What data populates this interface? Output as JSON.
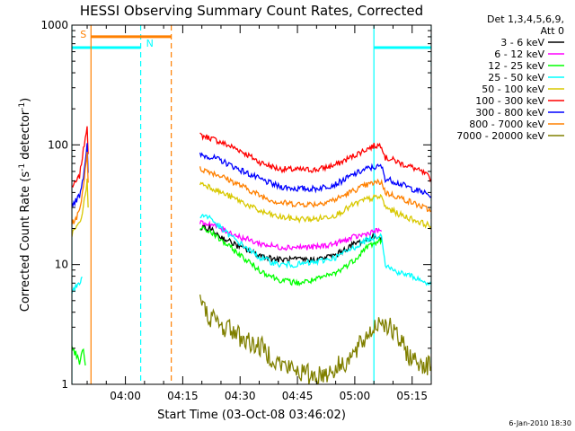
{
  "chart_data": {
    "type": "line",
    "title": "HESSI Observing Summary Count Rates, Corrected",
    "xlabel": "Start Time (03-Oct-08 03:46:02)",
    "ylabel_main": "Corrected Count Rate (s",
    "ylabel_sup1": "-1",
    "ylabel_mid": " detector",
    "ylabel_sup2": "-1",
    "ylabel_end": ")",
    "yscale": "log",
    "ylim": [
      1,
      1000
    ],
    "xlim_min": [
      226,
      320
    ],
    "xticks_min": [
      240,
      255,
      270,
      285,
      300,
      315
    ],
    "xtick_labels": [
      "04:00",
      "04:15",
      "04:30",
      "04:45",
      "05:00",
      "05:15"
    ],
    "yticks": [
      1,
      10,
      100,
      1000
    ],
    "ytick_labels": [
      "1",
      "10",
      "100",
      "1000"
    ],
    "legend_header": [
      "Det 1,3,4,5,6,9,",
      "Att 0"
    ],
    "legend": [
      {
        "label": "3 - 6 keV",
        "color": "#000000"
      },
      {
        "label": "6 - 12 keV",
        "color": "#ff00ff"
      },
      {
        "label": "12 - 25 keV",
        "color": "#00ff00"
      },
      {
        "label": "25 - 50 keV",
        "color": "#00ffff"
      },
      {
        "label": "50 - 100 keV",
        "color": "#d8c800"
      },
      {
        "label": "100 - 300 keV",
        "color": "#ff0000"
      },
      {
        "label": "300 - 800 keV",
        "color": "#0000ff"
      },
      {
        "label": "800 - 7000 keV",
        "color": "#ff8000"
      },
      {
        "label": "7000 - 20000 keV",
        "color": "#808000"
      }
    ],
    "markers": [
      {
        "label": "S",
        "color": "#ff8000"
      },
      {
        "label": "N",
        "color": "#00ffff"
      }
    ],
    "night_intervals_min": [
      [
        226,
        244
      ],
      [
        305,
        320
      ]
    ],
    "saa_interval_min": [
      231,
      252
    ],
    "gap_min": [
      244,
      259
    ],
    "series": [
      {
        "color": "#ff0000",
        "x": [
          226,
          227,
          228,
          229,
          230,
          230.5,
          259.5,
          262,
          265,
          270,
          275,
          280,
          285,
          290,
          295,
          300,
          303,
          305,
          307,
          308,
          310,
          312,
          315,
          318,
          320
        ],
        "y": [
          45,
          48,
          55,
          90,
          150,
          45,
          120,
          115,
          105,
          90,
          72,
          63,
          62,
          62,
          68,
          82,
          92,
          98,
          100,
          78,
          75,
          70,
          65,
          58,
          52
        ]
      },
      {
        "color": "#0000ff",
        "x": [
          226,
          227,
          228,
          229,
          230,
          230.5,
          259.5,
          262,
          265,
          270,
          275,
          280,
          285,
          290,
          295,
          300,
          303,
          305,
          307,
          308,
          310,
          312,
          315,
          318,
          320
        ],
        "y": [
          32,
          34,
          38,
          55,
          100,
          32,
          82,
          80,
          74,
          62,
          52,
          45,
          43,
          43,
          47,
          57,
          63,
          65,
          66,
          52,
          50,
          47,
          43,
          40,
          37
        ]
      },
      {
        "color": "#ff8000",
        "x": [
          226,
          227,
          228,
          229,
          230,
          230.5,
          259.5,
          262,
          265,
          270,
          275,
          280,
          285,
          290,
          295,
          300,
          303,
          305,
          307,
          308,
          310,
          312,
          315,
          318,
          320
        ],
        "y": [
          22,
          24,
          28,
          45,
          90,
          24,
          63,
          60,
          55,
          46,
          38,
          33,
          32,
          32,
          35,
          42,
          46,
          48,
          49,
          40,
          38,
          36,
          33,
          30,
          28
        ]
      },
      {
        "color": "#d8c800",
        "x": [
          226,
          227,
          228,
          229,
          230,
          230.5,
          259.5,
          262,
          265,
          270,
          275,
          280,
          285,
          290,
          295,
          300,
          303,
          305,
          307,
          308,
          310,
          312,
          315,
          318,
          320
        ],
        "y": [
          18,
          20,
          22,
          30,
          50,
          18,
          48,
          45,
          40,
          34,
          28,
          25,
          24,
          24,
          26,
          32,
          35,
          36,
          37,
          30,
          28,
          26,
          24,
          22,
          21
        ]
      },
      {
        "color": "#ff00ff",
        "x": [
          259.5,
          262,
          265,
          270,
          275,
          280,
          285,
          290,
          295,
          300,
          303,
          305,
          307
        ],
        "y": [
          22,
          22,
          20,
          17,
          15,
          14,
          14,
          14,
          15,
          17,
          18,
          19,
          19
        ]
      },
      {
        "color": "#000000",
        "x": [
          259.5,
          262,
          265,
          270,
          275,
          280,
          285,
          290,
          295,
          300,
          303,
          305,
          307
        ],
        "y": [
          20,
          20,
          17,
          14,
          12,
          11,
          11,
          11,
          12,
          15,
          16,
          17,
          17
        ]
      },
      {
        "color": "#00ffff",
        "x": [
          226,
          227,
          228,
          229,
          259.5,
          262,
          265,
          270,
          275,
          280,
          285,
          290,
          295,
          300,
          303,
          305,
          307,
          308,
          310,
          312,
          315,
          318,
          320
        ],
        "y": [
          6,
          6.5,
          7,
          8,
          26,
          25,
          20,
          15,
          11.5,
          10,
          10,
          10.5,
          11.5,
          14,
          16,
          17,
          18,
          10,
          9,
          8.5,
          8,
          7.2,
          6.8
        ]
      },
      {
        "color": "#00ff00",
        "x": [
          226,
          227,
          228,
          229,
          229.8,
          259.5,
          262,
          265,
          270,
          275,
          280,
          285,
          290,
          295,
          300,
          303,
          305,
          307
        ],
        "y": [
          2,
          1.8,
          1.5,
          2,
          1.2,
          20,
          19,
          16,
          12,
          9,
          7.5,
          7,
          7.5,
          8.5,
          11,
          14,
          15,
          16
        ]
      },
      {
        "color": "#808000",
        "x": [
          259.5,
          261,
          263,
          265,
          267,
          270,
          273,
          276,
          279,
          282,
          285,
          288,
          291,
          294,
          297,
          300,
          303,
          305,
          307,
          309,
          311,
          313,
          315,
          318,
          320
        ],
        "y": [
          5,
          4,
          3.5,
          3,
          3,
          2.5,
          2.2,
          2,
          1.6,
          1.4,
          1.3,
          1.2,
          1.2,
          1.3,
          1.5,
          1.8,
          2.5,
          3,
          3.5,
          3,
          2.5,
          2,
          1.6,
          1.5,
          1.4
        ]
      }
    ]
  },
  "timestamp": "6-Jan-2010 18:30"
}
